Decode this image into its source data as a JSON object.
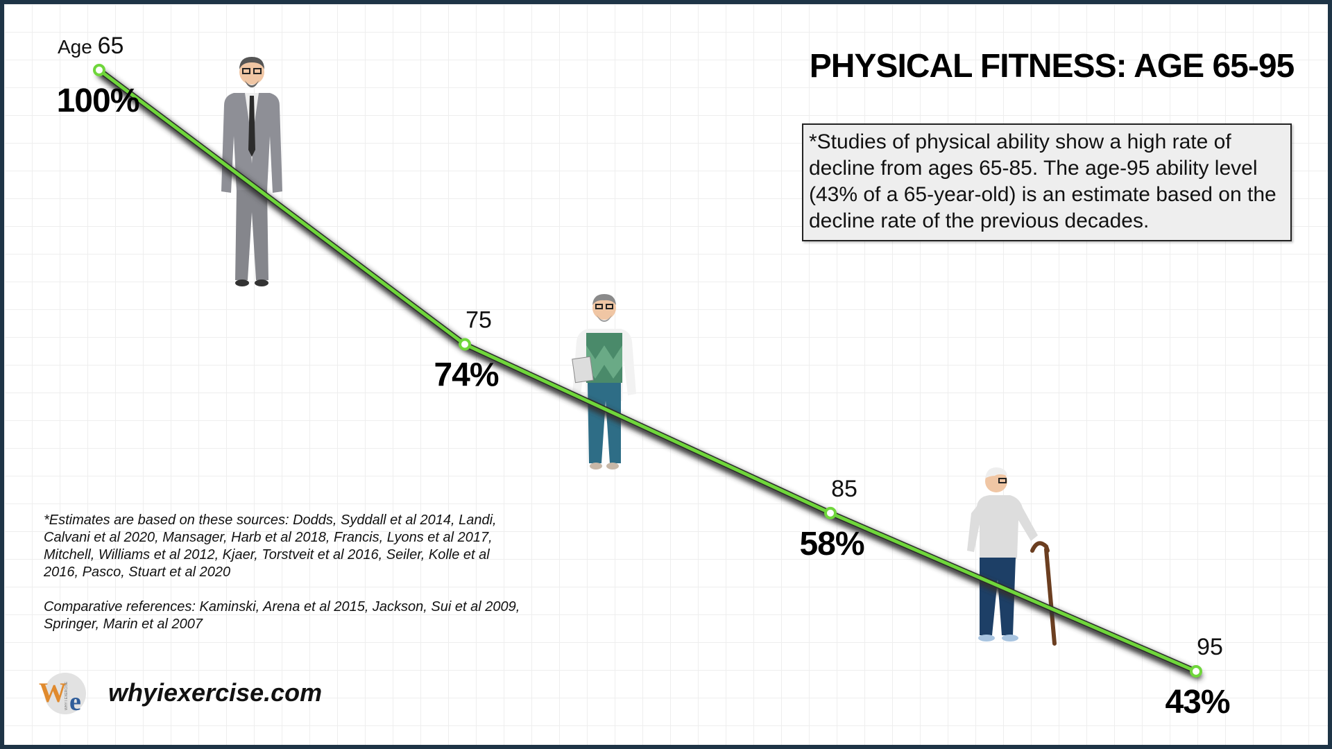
{
  "chart_data": {
    "type": "line",
    "title": "PHYSICAL FITNESS: AGE 65-95",
    "x_prefix": "Age",
    "x": [
      65,
      75,
      85,
      95
    ],
    "x_labels": [
      "65",
      "75",
      "85",
      "95"
    ],
    "values": [
      100,
      74,
      58,
      43
    ],
    "value_labels": [
      "100%",
      "74%",
      "58%",
      "43%"
    ],
    "xlabel": "",
    "ylabel": "",
    "grid": true,
    "colors": {
      "line": "#6fd63b",
      "shadow": "#333333"
    }
  },
  "note": "*Studies of physical ability show a high rate of decline from ages 65-85. The age-95 ability level (43% of a 65-year-old) is an estimate based on the decline rate of the previous decades.",
  "sources": "*Estimates are based on these sources:  Dodds, Syddall et al 2014, Landi, Calvani et al 2020, Mansager, Harb et al 2018, Francis, Lyons et al 2017, Mitchell, Williams et al 2012,  Kjaer, Torstveit et al 2016, Seiler, Kolle et al 2016, Pasco, Stuart et al 2020",
  "references": "Comparative references:  Kaminski, Arena et al 2015, Jackson, Sui et al 2009, Springer, Marin et al 2007",
  "logo": {
    "text_w": "W",
    "text_e": "e",
    "side_text": "WHY I EXERCISE"
  },
  "site": "whyiexercise.com",
  "figures": [
    "man-in-suit-icon",
    "man-in-sweater-vest-icon",
    "elderly-man-with-cane-icon"
  ]
}
